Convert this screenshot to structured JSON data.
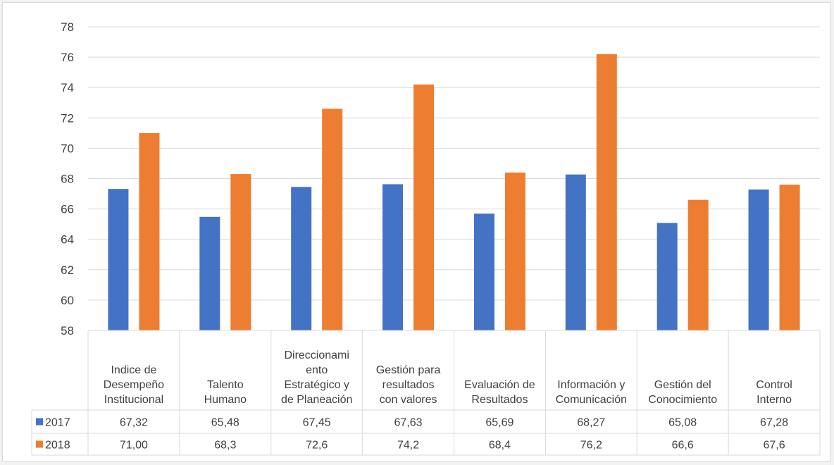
{
  "chart_data": {
    "type": "bar",
    "categories": [
      [
        "Indice  de",
        "Desempeño",
        "Institucional"
      ],
      [
        "Talento",
        "Humano"
      ],
      [
        "Direccionami",
        "ento",
        "Estratégico y",
        "de Planeación"
      ],
      [
        "Gestión para",
        "resultados",
        "con valores"
      ],
      [
        "Evaluación de",
        "Resultados"
      ],
      [
        "Información y",
        "Comunicación"
      ],
      [
        "Gestión del",
        "Conocimiento"
      ],
      [
        "Control",
        "Interno"
      ]
    ],
    "series": [
      {
        "name": "2017",
        "color": "#4472c4",
        "values": [
          67.32,
          65.48,
          67.45,
          67.63,
          65.69,
          68.27,
          65.08,
          67.28
        ],
        "labels": [
          "67,32",
          "65,48",
          "67,45",
          "67,63",
          "65,69",
          "68,27",
          "65,08",
          "67,28"
        ]
      },
      {
        "name": "2018",
        "color": "#ed7d31",
        "values": [
          71.0,
          68.3,
          72.6,
          74.2,
          68.4,
          76.2,
          66.6,
          67.6
        ],
        "labels": [
          "71,00",
          "68,3",
          "72,6",
          "74,2",
          "68,4",
          "76,2",
          "66,6",
          "67,6"
        ]
      }
    ],
    "ylim": [
      58,
      78
    ],
    "yticks": [
      58,
      60,
      62,
      64,
      66,
      68,
      70,
      72,
      74,
      76,
      78
    ],
    "grid": true,
    "data_table": true
  }
}
